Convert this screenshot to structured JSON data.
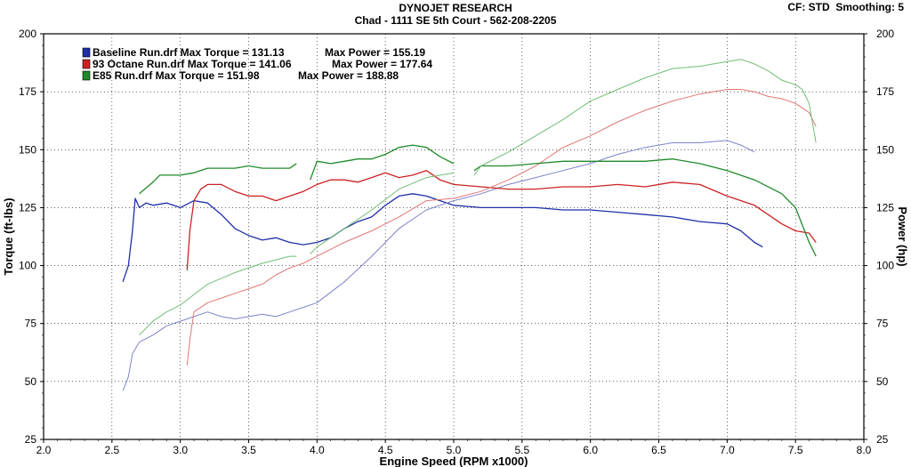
{
  "header": {
    "title": "DYNOJET RESEARCH",
    "subtitle": "Chad - 1111 SE 5th Court - 562-208-2205",
    "cf_label": "CF: STD",
    "smoothing_label": "Smoothing: 5"
  },
  "chart_data": {
    "type": "line",
    "xlabel": "Engine Speed (RPM x1000)",
    "ylabel": "Torque (ft-lbs)",
    "y2label": "Power (hp)",
    "xlim": [
      2.0,
      8.0
    ],
    "ylim": [
      25,
      200
    ],
    "y2lim": [
      25,
      200
    ],
    "x_ticks": [
      "2.0",
      "2.5",
      "3.0",
      "3.5",
      "4.0",
      "4.5",
      "5.0",
      "5.5",
      "6.0",
      "6.5",
      "7.0",
      "7.5",
      "8.0"
    ],
    "y_ticks": [
      "25",
      "50",
      "75",
      "100",
      "125",
      "150",
      "175",
      "200"
    ],
    "grid": true,
    "legend_position": "top-left",
    "legend": [
      {
        "run": "Baseline Run.drf",
        "torque_label": "Max Torque = 131.13",
        "power_label": "Max Power = 155.19",
        "color": "#1f2fa8"
      },
      {
        "run": "93 Octane Run.drf",
        "torque_label": "Max Torque = 141.06",
        "power_label": "Max Power = 177.64",
        "color": "#cc2222"
      },
      {
        "run": "E85 Run.drf",
        "torque_label": "Max Torque = 151.98",
        "power_label": "Max Power = 188.88",
        "color": "#1f8a2a"
      }
    ],
    "series": [
      {
        "name": "Baseline Run.drf",
        "metric": "torque",
        "color": "#1f2fa8",
        "x": [
          2.58,
          2.62,
          2.65,
          2.67,
          2.7,
          2.75,
          2.8,
          2.9,
          3.0,
          3.1,
          3.2,
          3.3,
          3.4,
          3.5,
          3.6,
          3.7,
          3.8,
          3.9,
          4.0,
          4.1,
          4.2,
          4.3,
          4.4,
          4.5,
          4.6,
          4.7,
          4.8,
          4.9,
          5.0,
          5.2,
          5.4,
          5.6,
          5.8,
          6.0,
          6.2,
          6.4,
          6.6,
          6.8,
          7.0,
          7.1,
          7.2,
          7.26
        ],
        "y": [
          93,
          100,
          115,
          129,
          125,
          127,
          126,
          127,
          125,
          128,
          127,
          122,
          116,
          113,
          111,
          112,
          110,
          109,
          110,
          112,
          116,
          119,
          121,
          126,
          130,
          131,
          130,
          128,
          126,
          125,
          125,
          125,
          124,
          124,
          123,
          122,
          121,
          119,
          118,
          115,
          110,
          108
        ]
      },
      {
        "name": "Baseline Run.drf",
        "metric": "power",
        "color": "#7d82c9",
        "x": [
          2.58,
          2.62,
          2.65,
          2.7,
          2.8,
          2.9,
          3.0,
          3.1,
          3.2,
          3.3,
          3.4,
          3.5,
          3.6,
          3.7,
          3.8,
          3.9,
          4.0,
          4.2,
          4.4,
          4.6,
          4.8,
          5.0,
          5.2,
          5.4,
          5.6,
          5.8,
          6.0,
          6.2,
          6.4,
          6.6,
          6.8,
          7.0,
          7.1,
          7.2
        ],
        "y": [
          46,
          52,
          62,
          67,
          70,
          74,
          76,
          78,
          80,
          78,
          77,
          78,
          79,
          78,
          80,
          82,
          84,
          93,
          104,
          116,
          124,
          128,
          131,
          135,
          138,
          141,
          144,
          148,
          151,
          153,
          153,
          154,
          152,
          149
        ]
      },
      {
        "name": "93 Octane Run.drf",
        "metric": "torque",
        "color": "#cc2222",
        "x": [
          3.05,
          3.07,
          3.1,
          3.15,
          3.2,
          3.3,
          3.4,
          3.5,
          3.6,
          3.7,
          3.8,
          3.9,
          4.0,
          4.1,
          4.2,
          4.3,
          4.4,
          4.5,
          4.6,
          4.7,
          4.8,
          4.9,
          5.0,
          5.2,
          5.4,
          5.6,
          5.8,
          6.0,
          6.2,
          6.4,
          6.6,
          6.8,
          7.0,
          7.2,
          7.4,
          7.5,
          7.6,
          7.65
        ],
        "y": [
          98,
          115,
          128,
          133,
          135,
          135,
          132,
          130,
          130,
          128,
          130,
          132,
          135,
          137,
          137,
          136,
          138,
          140,
          138,
          139,
          141,
          137,
          135,
          134,
          133,
          133,
          134,
          134,
          135,
          134,
          136,
          135,
          130,
          126,
          118,
          115,
          114,
          110
        ]
      },
      {
        "name": "93 Octane Run.drf",
        "metric": "power",
        "color": "#e07676",
        "x": [
          3.05,
          3.07,
          3.1,
          3.2,
          3.3,
          3.4,
          3.5,
          3.6,
          3.7,
          3.8,
          3.9,
          4.0,
          4.2,
          4.4,
          4.6,
          4.8,
          5.0,
          5.2,
          5.4,
          5.6,
          5.8,
          6.0,
          6.2,
          6.4,
          6.6,
          6.8,
          7.0,
          7.1,
          7.2,
          7.3,
          7.4,
          7.5,
          7.6,
          7.65
        ],
        "y": [
          57,
          68,
          80,
          84,
          86,
          88,
          90,
          92,
          96,
          99,
          101,
          104,
          110,
          115,
          121,
          128,
          129,
          132,
          137,
          143,
          151,
          156,
          162,
          167,
          171,
          174,
          176,
          176,
          175,
          173,
          172,
          170,
          166,
          160
        ]
      },
      {
        "name": "E85 Run.drf",
        "metric": "torque",
        "color": "#1f8a2a",
        "segments": [
          {
            "x": [
              2.7,
              2.8,
              2.85,
              2.9,
              3.0,
              3.1,
              3.2,
              3.3,
              3.4,
              3.5,
              3.6,
              3.7,
              3.8,
              3.85
            ],
            "y": [
              131,
              136,
              139,
              139,
              139,
              140,
              142,
              142,
              142,
              143,
              142,
              142,
              142,
              144
            ]
          },
          {
            "x": [
              3.95,
              4.0,
              4.1,
              4.2,
              4.3,
              4.4,
              4.5,
              4.6,
              4.7,
              4.8,
              4.9,
              5.0
            ],
            "y": [
              137,
              145,
              144,
              145,
              146,
              146,
              148,
              151,
              152,
              151,
              147,
              144
            ]
          },
          {
            "x": [
              5.15,
              5.2,
              5.4,
              5.6,
              5.8,
              6.0,
              6.2,
              6.4,
              6.6,
              6.8,
              7.0,
              7.2,
              7.4,
              7.5,
              7.6,
              7.65
            ],
            "y": [
              141,
              143,
              143,
              144,
              145,
              145,
              145,
              145,
              146,
              144,
              141,
              137,
              131,
              125,
              110,
              104
            ]
          }
        ]
      },
      {
        "name": "E85 Run.drf",
        "metric": "power",
        "color": "#6fbe74",
        "segments": [
          {
            "x": [
              2.7,
              2.8,
              2.9,
              3.0,
              3.2,
              3.4,
              3.6,
              3.8,
              3.85
            ],
            "y": [
              70,
              76,
              80,
              83,
              92,
              97,
              101,
              104,
              104
            ]
          },
          {
            "x": [
              3.95,
              4.0,
              4.2,
              4.4,
              4.6,
              4.8,
              5.0
            ],
            "y": [
              105,
              108,
              116,
              124,
              133,
              138,
              140
            ]
          },
          {
            "x": [
              5.15,
              5.2,
              5.4,
              5.6,
              5.8,
              6.0,
              6.2,
              6.4,
              6.6,
              6.8,
              7.0,
              7.1,
              7.2,
              7.3,
              7.4,
              7.5,
              7.55,
              7.6,
              7.65
            ],
            "y": [
              139,
              143,
              149,
              156,
              163,
              171,
              176,
              181,
              185,
              186,
              188,
              189,
              187,
              184,
              180,
              178,
              176,
              170,
              153
            ]
          }
        ]
      }
    ]
  }
}
